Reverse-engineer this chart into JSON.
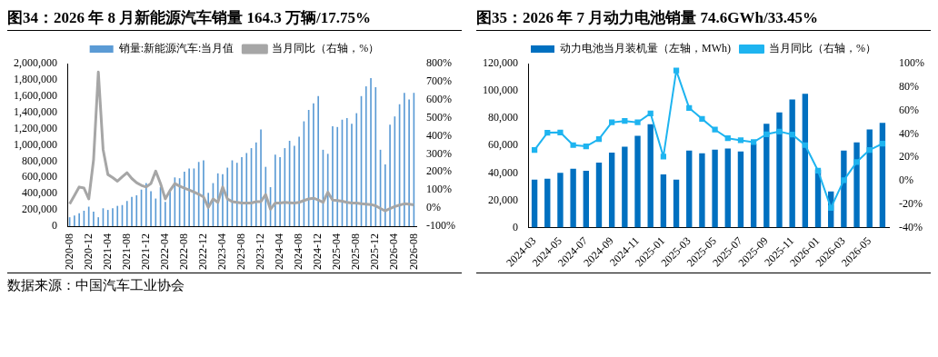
{
  "chart_data": [
    {
      "type": "bar",
      "title": "图34：2026 年 8 月新能源汽车销量 164.3 万辆/17.75%",
      "annotations": [
        "数据来源：中国汽车工业协会"
      ],
      "legend": "top",
      "grid": false,
      "marker": "none",
      "categories": [
        "2020-08",
        null,
        null,
        null,
        "2020-12",
        null,
        null,
        null,
        "2021-04",
        null,
        null,
        null,
        "2021-08",
        null,
        null,
        null,
        "2021-12",
        null,
        null,
        null,
        "2022-04",
        null,
        null,
        null,
        "2022-08",
        null,
        null,
        null,
        "2022-12",
        null,
        null,
        null,
        "2023-04",
        null,
        null,
        null,
        "2023-08",
        null,
        null,
        null,
        "2023-12",
        null,
        null,
        null,
        "2024-04",
        null,
        null,
        null,
        "2024-08",
        null,
        null,
        null,
        "2024-12",
        null,
        null,
        null,
        "2025-04",
        null,
        null,
        null,
        "2025-08",
        null,
        null,
        null,
        "2025-12",
        null,
        null,
        null,
        "2026-04",
        null,
        null,
        null,
        "2026-08"
      ],
      "series": [
        {
          "name": "销量:新能源汽车:当月值",
          "color": "#5b9bd5",
          "values": [
            110000,
            130000,
            160000,
            190000,
            240000,
            180000,
            110000,
            220000,
            200000,
            220000,
            250000,
            260000,
            310000,
            360000,
            380000,
            450000,
            530000,
            430000,
            340000,
            480000,
            300000,
            450000,
            600000,
            590000,
            670000,
            710000,
            710000,
            790000,
            810000,
            410000,
            530000,
            650000,
            640000,
            720000,
            810000,
            780000,
            850000,
            900000,
            960000,
            1030000,
            1190000,
            730000,
            480000,
            880000,
            850000,
            960000,
            1050000,
            990000,
            1100000,
            1290000,
            1430000,
            1510000,
            1600000,
            940000,
            890000,
            1230000,
            1220000,
            1310000,
            1330000,
            1260000,
            1390000,
            1600000,
            1720000,
            1820000,
            1710000,
            940000,
            760000,
            1250000,
            1350000,
            1500000,
            1640000,
            1560000,
            1640000
          ]
        },
        {
          "type": "line",
          "axis": "y2",
          "name": "当月同比（右轴，%）",
          "color": "#a6a6a6",
          "values": [
            23,
            70,
            117,
            111,
            51,
            267,
            753,
            324,
            186,
            169,
            149,
            173,
            196,
            164,
            141,
            126,
            117,
            136,
            205,
            136,
            51,
            98,
            136,
            122,
            111,
            100,
            89,
            77,
            62,
            4,
            51,
            32,
            117,
            51,
            36,
            32,
            28,
            28,
            28,
            36,
            36,
            75,
            -6,
            28,
            28,
            32,
            30,
            28,
            32,
            42,
            51,
            55,
            45,
            32,
            88,
            45,
            42,
            38,
            32,
            28,
            28,
            24,
            22,
            20,
            13,
            -2,
            -15,
            -2,
            9,
            17,
            24,
            22,
            18
          ]
        }
      ],
      "ylim": [
        0,
        2000000
      ],
      "yticks": [
        {
          "value": 0,
          "label": "0"
        },
        {
          "value": 200000,
          "label": "200,000"
        },
        {
          "value": 400000,
          "label": "400,000"
        },
        {
          "value": 600000,
          "label": "600,000"
        },
        {
          "value": 800000,
          "label": "800,000"
        },
        {
          "value": 1000000,
          "label": "1,000,000"
        },
        {
          "value": 1200000,
          "label": "1,200,000"
        },
        {
          "value": 1400000,
          "label": "1,400,000"
        },
        {
          "value": 1600000,
          "label": "1,600,000"
        },
        {
          "value": 1800000,
          "label": "1,800,000"
        },
        {
          "value": 2000000,
          "label": "2,000,000"
        }
      ],
      "y2lim": [
        -100,
        800
      ],
      "y2ticks": [
        {
          "value": -100,
          "label": "-100%"
        },
        {
          "value": 0,
          "label": "0%"
        },
        {
          "value": 100,
          "label": "100%"
        },
        {
          "value": 200,
          "label": "200%"
        },
        {
          "value": 300,
          "label": "300%"
        },
        {
          "value": 400,
          "label": "400%"
        },
        {
          "value": 500,
          "label": "500%"
        },
        {
          "value": 600,
          "label": "600%"
        },
        {
          "value": 700,
          "label": "700%"
        },
        {
          "value": 800,
          "label": "800%"
        }
      ]
    },
    {
      "type": "bar",
      "title": "图35：2026 年 7 月动力电池销量 74.6GWh/33.45%",
      "legend": "top",
      "grid": false,
      "marker": "square",
      "categories": [
        "2024-03",
        null,
        "2024-05",
        null,
        "2024-07",
        null,
        "2024-09",
        null,
        "2024-11",
        null,
        "2025-01",
        null,
        "2025-03",
        null,
        "2025-05",
        null,
        "2025-07",
        null,
        "2025-09",
        null,
        "2025-11",
        null,
        "2026-01",
        null,
        "2026-03",
        null,
        "2026-05",
        null
      ],
      "series": [
        {
          "name": "动力电池当月装机量（左轴，MWh)",
          "color": "#0070c0",
          "values": [
            35100,
            35800,
            40000,
            43100,
            41500,
            47500,
            54800,
            59200,
            67200,
            75600,
            38900,
            35100,
            56400,
            54400,
            57000,
            57900,
            55700,
            61200,
            76000,
            84200,
            93700,
            97900,
            42400,
            26500,
            56400,
            62300,
            71800,
            76700
          ]
        },
        {
          "type": "line",
          "axis": "y2",
          "name": "当月同比（右轴，%）",
          "color": "#1eb4f0",
          "values": [
            26.3,
            41,
            41.2,
            30.4,
            29.4,
            35.6,
            49.8,
            51,
            49.8,
            57.5,
            20.6,
            94.1,
            62.1,
            52.8,
            43.6,
            36.3,
            34.5,
            33,
            39.7,
            42,
            39.4,
            30.4,
            8.5,
            -23.2,
            0.5,
            16,
            26.3,
            31.7
          ]
        }
      ],
      "ylim": [
        0,
        120000
      ],
      "yticks": [
        {
          "value": 0,
          "label": "0"
        },
        {
          "value": 20000,
          "label": "20,000"
        },
        {
          "value": 40000,
          "label": "40,000"
        },
        {
          "value": 60000,
          "label": "60,000"
        },
        {
          "value": 80000,
          "label": "80,000"
        },
        {
          "value": 100000,
          "label": "100,000"
        },
        {
          "value": 120000,
          "label": "120,000"
        }
      ],
      "y2lim": [
        -40,
        100
      ],
      "y2ticks": [
        {
          "value": -40,
          "label": "-40%"
        },
        {
          "value": -20,
          "label": "-20%"
        },
        {
          "value": 0,
          "label": "0%"
        },
        {
          "value": 20,
          "label": "20%"
        },
        {
          "value": 40,
          "label": "40%"
        },
        {
          "value": 60,
          "label": "60%"
        },
        {
          "value": 80,
          "label": "80%"
        },
        {
          "value": 100,
          "label": "100%"
        }
      ]
    }
  ]
}
